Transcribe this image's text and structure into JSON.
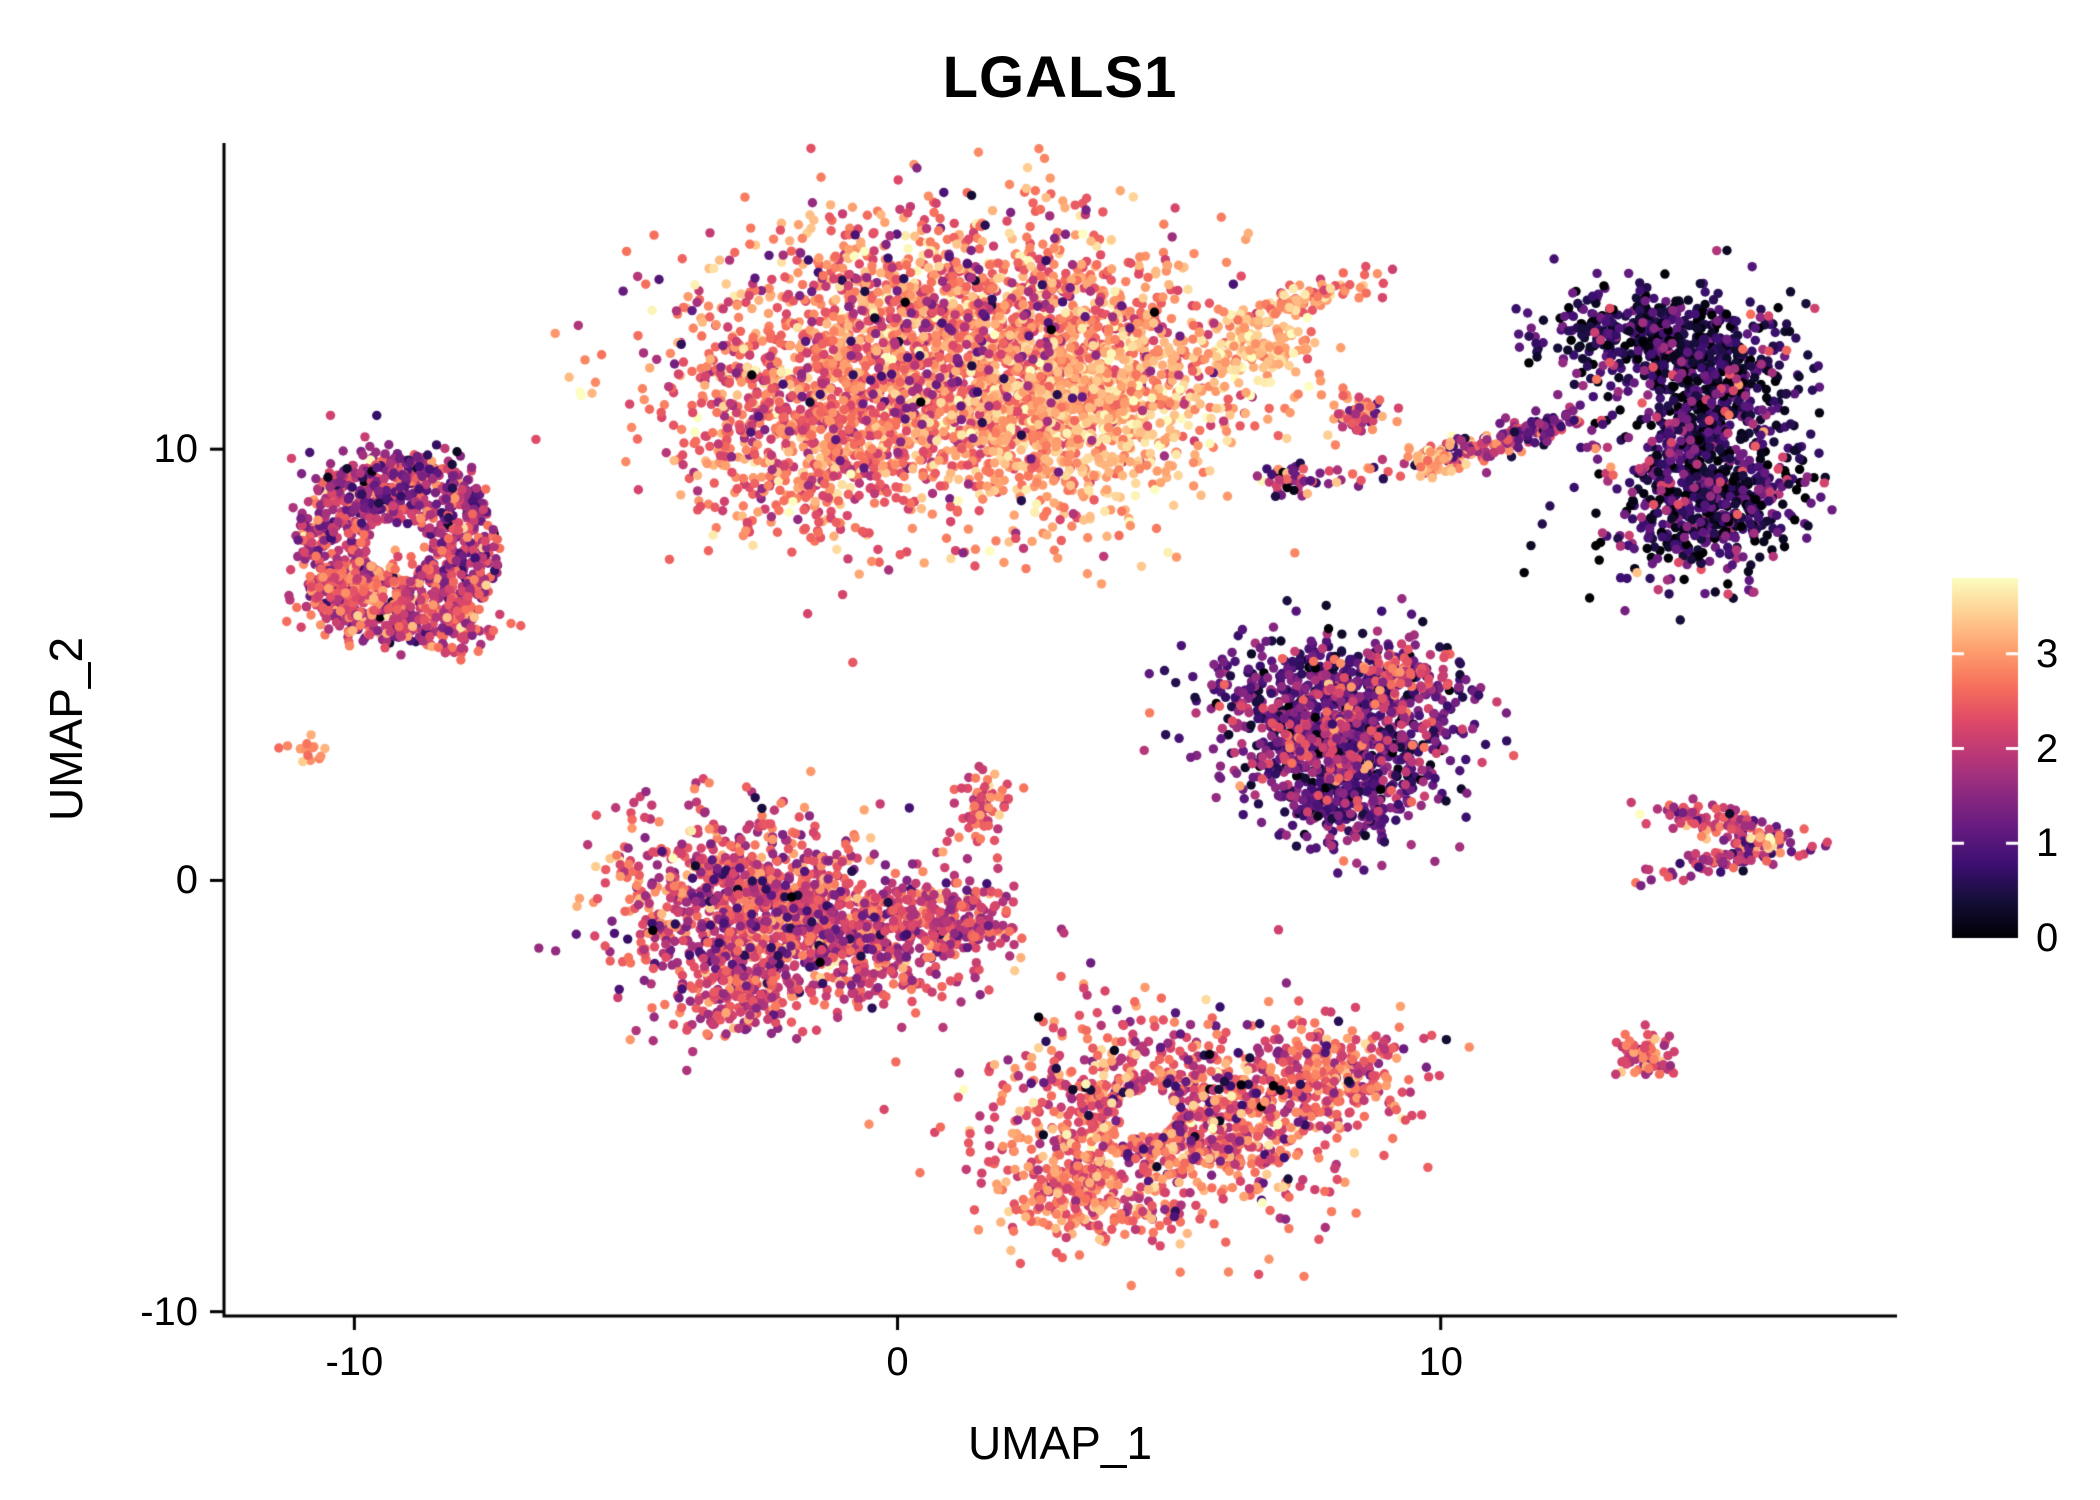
{
  "chart_data": {
    "type": "scatter",
    "title": "LGALS1",
    "xlabel": "UMAP_1",
    "ylabel": "UMAP_2",
    "xlim": [
      -12.4,
      18.4
    ],
    "ylim": [
      -10.1,
      17.1
    ],
    "x_ticks": [
      -10,
      0,
      10
    ],
    "y_ticks": [
      -10,
      0,
      10
    ],
    "grid": false,
    "point_radius_px": 4.7,
    "seed": 7,
    "legend": {
      "position": "right",
      "ticks": [
        3,
        2,
        1,
        0
      ],
      "domain": [
        0,
        3.8
      ],
      "tick_color": "#ffffff"
    },
    "colormap": {
      "name": "magma",
      "stops": [
        "#000004",
        "#140E36",
        "#3B0F70",
        "#641A80",
        "#8C2981",
        "#B73779",
        "#DE4968",
        "#F7705C",
        "#FE9F6D",
        "#FECF92",
        "#FCFDBF"
      ]
    },
    "axis_color": "#000000",
    "background": "#ffffff",
    "clusters": [
      {
        "name": "top-large-main",
        "shape": "gauss",
        "cx": 1.2,
        "cy": 12.2,
        "sx": 2.3,
        "sy": 1.55,
        "rot": 0,
        "n": 2400,
        "expr": 2.8,
        "sd": 0.45
      },
      {
        "name": "top-large-left-lobe",
        "shape": "gauss",
        "cx": -1.6,
        "cy": 10.2,
        "sx": 1.1,
        "sy": 1.1,
        "rot": 0,
        "n": 550,
        "expr": 2.6,
        "sd": 0.5
      },
      {
        "name": "top-large-bright-right",
        "shape": "gauss",
        "cx": 3.4,
        "cy": 10.8,
        "sx": 1.3,
        "sy": 1.0,
        "rot": 0,
        "n": 650,
        "expr": 3.2,
        "sd": 0.35
      },
      {
        "name": "top-large-purple-speckle",
        "shape": "gauss",
        "cx": 0.8,
        "cy": 12.6,
        "sx": 2.2,
        "sy": 1.4,
        "rot": 0,
        "n": 260,
        "expr": 1.5,
        "sd": 0.6
      },
      {
        "name": "top-right-appendage",
        "shape": "gauss",
        "cx": 6.55,
        "cy": 12.35,
        "sx": 0.5,
        "sy": 0.45,
        "rot": 0,
        "n": 140,
        "expr": 3.3,
        "sd": 0.3
      },
      {
        "name": "top-spike",
        "shape": "gauss",
        "cx": 7.5,
        "cy": 13.5,
        "sx": 0.75,
        "sy": 0.18,
        "rot": 22,
        "n": 80,
        "expr": 2.9,
        "sd": 0.4
      },
      {
        "name": "below-top-strays",
        "shape": "gauss",
        "cx": 2.5,
        "cy": 7.9,
        "sx": 1.4,
        "sy": 0.5,
        "rot": 0,
        "n": 22,
        "expr": 2.4,
        "sd": 0.6
      },
      {
        "name": "right-crescent-top",
        "shape": "gauss",
        "cx": 13.9,
        "cy": 12.6,
        "sx": 1.05,
        "sy": 0.55,
        "rot": -10,
        "n": 420,
        "expr": 0.55,
        "sd": 0.5
      },
      {
        "name": "right-crescent-mid",
        "shape": "gauss",
        "cx": 15.0,
        "cy": 10.8,
        "sx": 0.75,
        "sy": 1.05,
        "rot": 0,
        "n": 520,
        "expr": 0.5,
        "sd": 0.45
      },
      {
        "name": "right-crescent-bottom",
        "shape": "gauss",
        "cx": 14.9,
        "cy": 8.6,
        "sx": 0.95,
        "sy": 0.75,
        "rot": 25,
        "n": 420,
        "expr": 0.6,
        "sd": 0.55
      },
      {
        "name": "right-crescent-pink-speckle",
        "shape": "gauss",
        "cx": 14.6,
        "cy": 10.6,
        "sx": 1.0,
        "sy": 1.7,
        "rot": 0,
        "n": 150,
        "expr": 1.7,
        "sd": 0.6
      },
      {
        "name": "left-ring",
        "shape": "ring",
        "cx": -9.2,
        "cy": 7.7,
        "rx": 1.9,
        "ry": 2.2,
        "r0": 0.3,
        "n": 850,
        "expr": 1.9,
        "sd": 0.65
      },
      {
        "name": "left-ring-bottom-left",
        "shape": "gauss",
        "cx": -9.9,
        "cy": 6.6,
        "sx": 0.6,
        "sy": 0.5,
        "rot": 0,
        "n": 180,
        "expr": 2.5,
        "sd": 0.4
      },
      {
        "name": "left-ring-bottom-right",
        "shape": "gauss",
        "cx": -8.3,
        "cy": 6.0,
        "sx": 0.45,
        "sy": 0.4,
        "rot": 0,
        "n": 120,
        "expr": 2.4,
        "sd": 0.5
      },
      {
        "name": "left-ring-top-purple",
        "shape": "gauss",
        "cx": -9.3,
        "cy": 9.2,
        "sx": 0.8,
        "sy": 0.5,
        "rot": 0,
        "n": 150,
        "expr": 1.4,
        "sd": 0.5
      },
      {
        "name": "tiny-left-dot",
        "shape": "gauss",
        "cx": -10.85,
        "cy": 3.0,
        "sx": 0.17,
        "sy": 0.14,
        "rot": 0,
        "n": 14,
        "expr": 2.7,
        "sd": 0.4
      },
      {
        "name": "small-mid-upper",
        "shape": "gauss",
        "cx": 8.55,
        "cy": 10.85,
        "sx": 0.28,
        "sy": 0.22,
        "rot": 0,
        "n": 50,
        "expr": 2.3,
        "sd": 0.7
      },
      {
        "name": "small-mid-lower",
        "shape": "gauss",
        "cx": 7.35,
        "cy": 9.3,
        "sx": 0.33,
        "sy": 0.2,
        "rot": 0,
        "n": 42,
        "expr": 1.7,
        "sd": 0.9
      },
      {
        "name": "streak",
        "shape": "gauss",
        "cx": 10.65,
        "cy": 10.05,
        "sx": 0.95,
        "sy": 0.17,
        "rot": 18,
        "n": 150,
        "expr": 2.0,
        "sd": 0.8
      },
      {
        "name": "streak-bright-head",
        "shape": "gauss",
        "cx": 9.85,
        "cy": 9.75,
        "sx": 0.22,
        "sy": 0.18,
        "rot": 0,
        "n": 40,
        "expr": 3.1,
        "sd": 0.3
      },
      {
        "name": "streak-purple-tail",
        "shape": "gauss",
        "cx": 11.85,
        "cy": 10.5,
        "sx": 0.3,
        "sy": 0.15,
        "rot": 18,
        "n": 40,
        "expr": 1.1,
        "sd": 0.4
      },
      {
        "name": "center-dark-top",
        "shape": "gauss",
        "cx": 8.1,
        "cy": 4.3,
        "sx": 1.25,
        "sy": 0.65,
        "rot": 0,
        "n": 480,
        "expr": 1.0,
        "sd": 0.45
      },
      {
        "name": "center-dark-mid",
        "shape": "gauss",
        "cx": 8.1,
        "cy": 3.0,
        "sx": 1.0,
        "sy": 0.7,
        "rot": 0,
        "n": 420,
        "expr": 1.05,
        "sd": 0.5
      },
      {
        "name": "center-dark-bottom",
        "shape": "gauss",
        "cx": 8.2,
        "cy": 1.8,
        "sx": 0.6,
        "sy": 0.55,
        "rot": 0,
        "n": 220,
        "expr": 1.0,
        "sd": 0.5
      },
      {
        "name": "center-dark-pink-speckle",
        "shape": "gauss",
        "cx": 8.1,
        "cy": 3.3,
        "sx": 1.05,
        "sy": 1.05,
        "rot": 0,
        "n": 230,
        "expr": 2.1,
        "sd": 0.45
      },
      {
        "name": "center-dark-orange-edge",
        "shape": "gauss",
        "cx": 9.4,
        "cy": 4.9,
        "sx": 0.35,
        "sy": 0.3,
        "rot": 0,
        "n": 60,
        "expr": 2.4,
        "sd": 0.5
      },
      {
        "name": "center-left-main",
        "shape": "gauss",
        "cx": -2.8,
        "cy": -0.7,
        "sx": 1.25,
        "sy": 1.05,
        "rot": 0,
        "n": 850,
        "expr": 2.3,
        "sd": 0.5
      },
      {
        "name": "center-left-arm",
        "shape": "gauss",
        "cx": -0.6,
        "cy": -1.3,
        "sx": 1.1,
        "sy": 0.75,
        "rot": -10,
        "n": 420,
        "expr": 2.2,
        "sd": 0.5
      },
      {
        "name": "center-left-arm-tip",
        "shape": "gauss",
        "cx": 1.0,
        "cy": -0.9,
        "sx": 0.7,
        "sy": 0.55,
        "rot": 0,
        "n": 200,
        "expr": 2.1,
        "sd": 0.55
      },
      {
        "name": "center-left-spur",
        "shape": "gauss",
        "cx": 1.55,
        "cy": 1.6,
        "sx": 0.3,
        "sy": 0.45,
        "rot": 0,
        "n": 70,
        "expr": 2.5,
        "sd": 0.5
      },
      {
        "name": "center-left-dark-speckle",
        "shape": "gauss",
        "cx": -2.6,
        "cy": -0.8,
        "sx": 1.3,
        "sy": 1.0,
        "rot": 0,
        "n": 150,
        "expr": 1.2,
        "sd": 0.6
      },
      {
        "name": "center-left-bottom-tail",
        "shape": "gauss",
        "cx": -2.9,
        "cy": -2.6,
        "sx": 0.6,
        "sy": 0.5,
        "rot": 0,
        "n": 150,
        "expr": 2.2,
        "sd": 0.5
      },
      {
        "name": "bottom-main",
        "shape": "gauss",
        "cx": 5.0,
        "cy": -5.6,
        "sx": 1.6,
        "sy": 1.15,
        "rot": 0,
        "n": 950,
        "expr": 2.5,
        "sd": 0.5,
        "holes": [
          {
            "cx": 4.6,
            "cy": -5.4,
            "r": 0.55
          }
        ]
      },
      {
        "name": "bottom-right-lobe",
        "shape": "gauss",
        "cx": 7.9,
        "cy": -4.5,
        "sx": 0.8,
        "sy": 0.65,
        "rot": 0,
        "n": 260,
        "expr": 2.4,
        "sd": 0.5
      },
      {
        "name": "bottom-left-lobe",
        "shape": "gauss",
        "cx": 3.3,
        "cy": -7.3,
        "sx": 0.7,
        "sy": 0.55,
        "rot": 0,
        "n": 200,
        "expr": 2.6,
        "sd": 0.45
      },
      {
        "name": "bottom-dark-speckle",
        "shape": "gauss",
        "cx": 5.4,
        "cy": -5.3,
        "sx": 1.5,
        "sy": 1.0,
        "rot": 0,
        "n": 110,
        "expr": 1.0,
        "sd": 0.6,
        "holes": [
          {
            "cx": 4.6,
            "cy": -5.4,
            "r": 0.55
          }
        ]
      },
      {
        "name": "bottom-bright-speckle",
        "shape": "gauss",
        "cx": 5.2,
        "cy": -5.8,
        "sx": 1.4,
        "sy": 0.9,
        "rot": 0,
        "n": 40,
        "expr": 3.4,
        "sd": 0.25,
        "holes": [
          {
            "cx": 4.6,
            "cy": -5.4,
            "r": 0.55
          }
        ]
      },
      {
        "name": "right-chevron-upper",
        "shape": "gauss",
        "cx": 15.35,
        "cy": 1.25,
        "sx": 0.7,
        "sy": 0.17,
        "rot": -15,
        "n": 100,
        "expr": 2.1,
        "sd": 0.6
      },
      {
        "name": "right-chevron-lower",
        "shape": "gauss",
        "cx": 15.35,
        "cy": 0.55,
        "sx": 0.65,
        "sy": 0.16,
        "rot": 18,
        "n": 90,
        "expr": 1.9,
        "sd": 0.6
      },
      {
        "name": "right-chevron-tip",
        "shape": "gauss",
        "cx": 16.0,
        "cy": 0.9,
        "sx": 0.15,
        "sy": 0.12,
        "rot": 0,
        "n": 15,
        "expr": 3.2,
        "sd": 0.4
      },
      {
        "name": "small-bottom-right",
        "shape": "gauss",
        "cx": 13.85,
        "cy": -4.05,
        "sx": 0.33,
        "sy": 0.28,
        "rot": 0,
        "n": 70,
        "expr": 2.4,
        "sd": 0.5
      }
    ]
  }
}
